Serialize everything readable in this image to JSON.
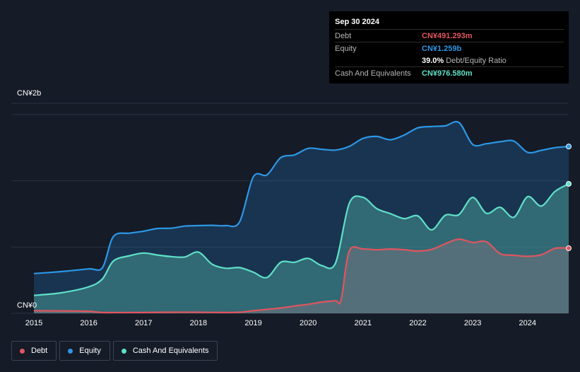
{
  "tooltip": {
    "date": "Sep 30 2024",
    "debt_label": "Debt",
    "debt_value": "CN¥491.293m",
    "equity_label": "Equity",
    "equity_value": "CN¥1.259b",
    "ratio_value": "39.0%",
    "ratio_label": "Debt/Equity Ratio",
    "cash_label": "Cash And Equivalents",
    "cash_value": "CN¥976.580m"
  },
  "legend": {
    "debt": "Debt",
    "equity": "Equity",
    "cash": "Cash And Equivalents"
  },
  "colors": {
    "debt": "#e0555f",
    "equity": "#2d97e6",
    "cash": "#5fe0c8",
    "background": "#151b27"
  },
  "chart_data": {
    "type": "area",
    "ylim": [
      0,
      1500
    ],
    "y_tick_labels": [
      {
        "value": 1500,
        "label": "CN¥2b"
      },
      {
        "value": 0,
        "label": "CN¥0"
      }
    ],
    "x_tick_labels": [
      "2015",
      "2016",
      "2017",
      "2018",
      "2019",
      "2020",
      "2021",
      "2022",
      "2023",
      "2024"
    ],
    "xlim": [
      2015.0,
      2024.75
    ],
    "grid": true,
    "series": [
      {
        "name": "Equity",
        "points": [
          [
            2015.0,
            300
          ],
          [
            2015.5,
            315
          ],
          [
            2016.0,
            335
          ],
          [
            2016.25,
            345
          ],
          [
            2016.45,
            580
          ],
          [
            2016.75,
            605
          ],
          [
            2017.0,
            620
          ],
          [
            2017.25,
            640
          ],
          [
            2017.5,
            642
          ],
          [
            2017.75,
            658
          ],
          [
            2018.0,
            662
          ],
          [
            2018.25,
            664
          ],
          [
            2018.5,
            662
          ],
          [
            2018.75,
            690
          ],
          [
            2019.0,
            1030
          ],
          [
            2019.25,
            1045
          ],
          [
            2019.5,
            1175
          ],
          [
            2019.75,
            1195
          ],
          [
            2020.0,
            1245
          ],
          [
            2020.25,
            1238
          ],
          [
            2020.5,
            1232
          ],
          [
            2020.75,
            1260
          ],
          [
            2021.0,
            1320
          ],
          [
            2021.25,
            1335
          ],
          [
            2021.5,
            1310
          ],
          [
            2021.75,
            1345
          ],
          [
            2022.0,
            1400
          ],
          [
            2022.25,
            1410
          ],
          [
            2022.5,
            1415
          ],
          [
            2022.75,
            1440
          ],
          [
            2023.0,
            1275
          ],
          [
            2023.25,
            1280
          ],
          [
            2023.5,
            1295
          ],
          [
            2023.75,
            1300
          ],
          [
            2024.0,
            1215
          ],
          [
            2024.25,
            1230
          ],
          [
            2024.5,
            1250
          ],
          [
            2024.75,
            1259
          ]
        ]
      },
      {
        "name": "Cash And Equivalents",
        "points": [
          [
            2015.0,
            135
          ],
          [
            2015.5,
            155
          ],
          [
            2016.0,
            200
          ],
          [
            2016.25,
            260
          ],
          [
            2016.45,
            395
          ],
          [
            2016.75,
            435
          ],
          [
            2017.0,
            455
          ],
          [
            2017.25,
            440
          ],
          [
            2017.5,
            428
          ],
          [
            2017.75,
            425
          ],
          [
            2018.0,
            462
          ],
          [
            2018.25,
            370
          ],
          [
            2018.5,
            340
          ],
          [
            2018.75,
            345
          ],
          [
            2019.0,
            310
          ],
          [
            2019.25,
            270
          ],
          [
            2019.5,
            385
          ],
          [
            2019.75,
            385
          ],
          [
            2020.0,
            415
          ],
          [
            2020.25,
            360
          ],
          [
            2020.5,
            380
          ],
          [
            2020.75,
            830
          ],
          [
            2021.0,
            875
          ],
          [
            2021.25,
            790
          ],
          [
            2021.5,
            752
          ],
          [
            2021.75,
            715
          ],
          [
            2022.0,
            735
          ],
          [
            2022.25,
            630
          ],
          [
            2022.5,
            740
          ],
          [
            2022.75,
            745
          ],
          [
            2023.0,
            875
          ],
          [
            2023.25,
            755
          ],
          [
            2023.5,
            800
          ],
          [
            2023.75,
            725
          ],
          [
            2024.0,
            880
          ],
          [
            2024.25,
            810
          ],
          [
            2024.5,
            920
          ],
          [
            2024.75,
            977
          ]
        ]
      },
      {
        "name": "Debt",
        "points": [
          [
            2015.0,
            20
          ],
          [
            2015.5,
            18
          ],
          [
            2016.0,
            15
          ],
          [
            2016.25,
            6
          ],
          [
            2016.75,
            6
          ],
          [
            2017.0,
            6
          ],
          [
            2017.5,
            8
          ],
          [
            2018.0,
            8
          ],
          [
            2018.5,
            6
          ],
          [
            2018.75,
            8
          ],
          [
            2019.0,
            20
          ],
          [
            2019.5,
            40
          ],
          [
            2019.75,
            55
          ],
          [
            2020.0,
            68
          ],
          [
            2020.25,
            85
          ],
          [
            2020.5,
            95
          ],
          [
            2020.6,
            100
          ],
          [
            2020.75,
            470
          ],
          [
            2021.0,
            485
          ],
          [
            2021.25,
            480
          ],
          [
            2021.5,
            485
          ],
          [
            2021.75,
            480
          ],
          [
            2022.0,
            470
          ],
          [
            2022.25,
            482
          ],
          [
            2022.5,
            525
          ],
          [
            2022.75,
            560
          ],
          [
            2023.0,
            535
          ],
          [
            2023.25,
            540
          ],
          [
            2023.5,
            450
          ],
          [
            2023.75,
            438
          ],
          [
            2024.0,
            430
          ],
          [
            2024.25,
            442
          ],
          [
            2024.5,
            490
          ],
          [
            2024.75,
            491
          ]
        ]
      }
    ]
  }
}
